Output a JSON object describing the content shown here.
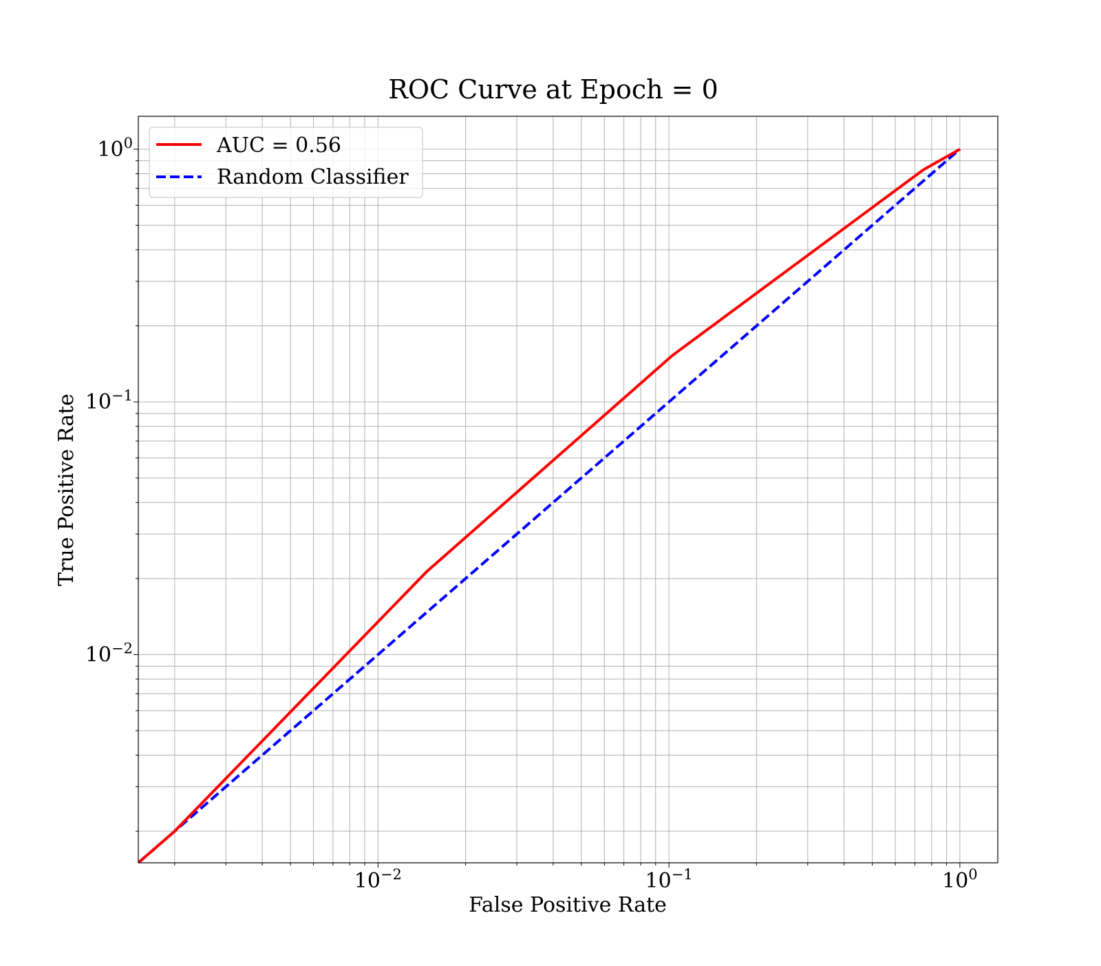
{
  "chart_data": {
    "type": "line",
    "title": "ROC Curve at Epoch = 0",
    "xlabel": "False Positive Rate",
    "ylabel": "True Positive Rate",
    "xscale": "log",
    "yscale": "log",
    "xlim": [
      0.0015,
      1.35
    ],
    "ylim": [
      0.0015,
      1.35
    ],
    "grid": "on (major and minor)",
    "legend_position": "top-left",
    "x_ticks": [
      {
        "value": 0.01,
        "base": "10",
        "exp": "−2"
      },
      {
        "value": 0.1,
        "base": "10",
        "exp": "−1"
      },
      {
        "value": 1,
        "base": "10",
        "exp": "0"
      }
    ],
    "y_ticks": [
      {
        "value": 0.01,
        "base": "10",
        "exp": "−2"
      },
      {
        "value": 0.1,
        "base": "10",
        "exp": "−1"
      },
      {
        "value": 1,
        "base": "10",
        "exp": "0"
      }
    ],
    "series": [
      {
        "name": "AUC = 0.56",
        "color": "#ff0000",
        "style": "solid",
        "x": [
          0.0015,
          0.002,
          0.0147,
          0.103,
          0.75,
          1.0
        ],
        "y": [
          0.0015,
          0.002,
          0.0213,
          0.153,
          0.83,
          1.0
        ]
      },
      {
        "name": "Random Classifier",
        "color": "#0000ff",
        "style": "dashed",
        "x": [
          0.0015,
          1.0
        ],
        "y": [
          0.0015,
          1.0
        ]
      }
    ]
  }
}
